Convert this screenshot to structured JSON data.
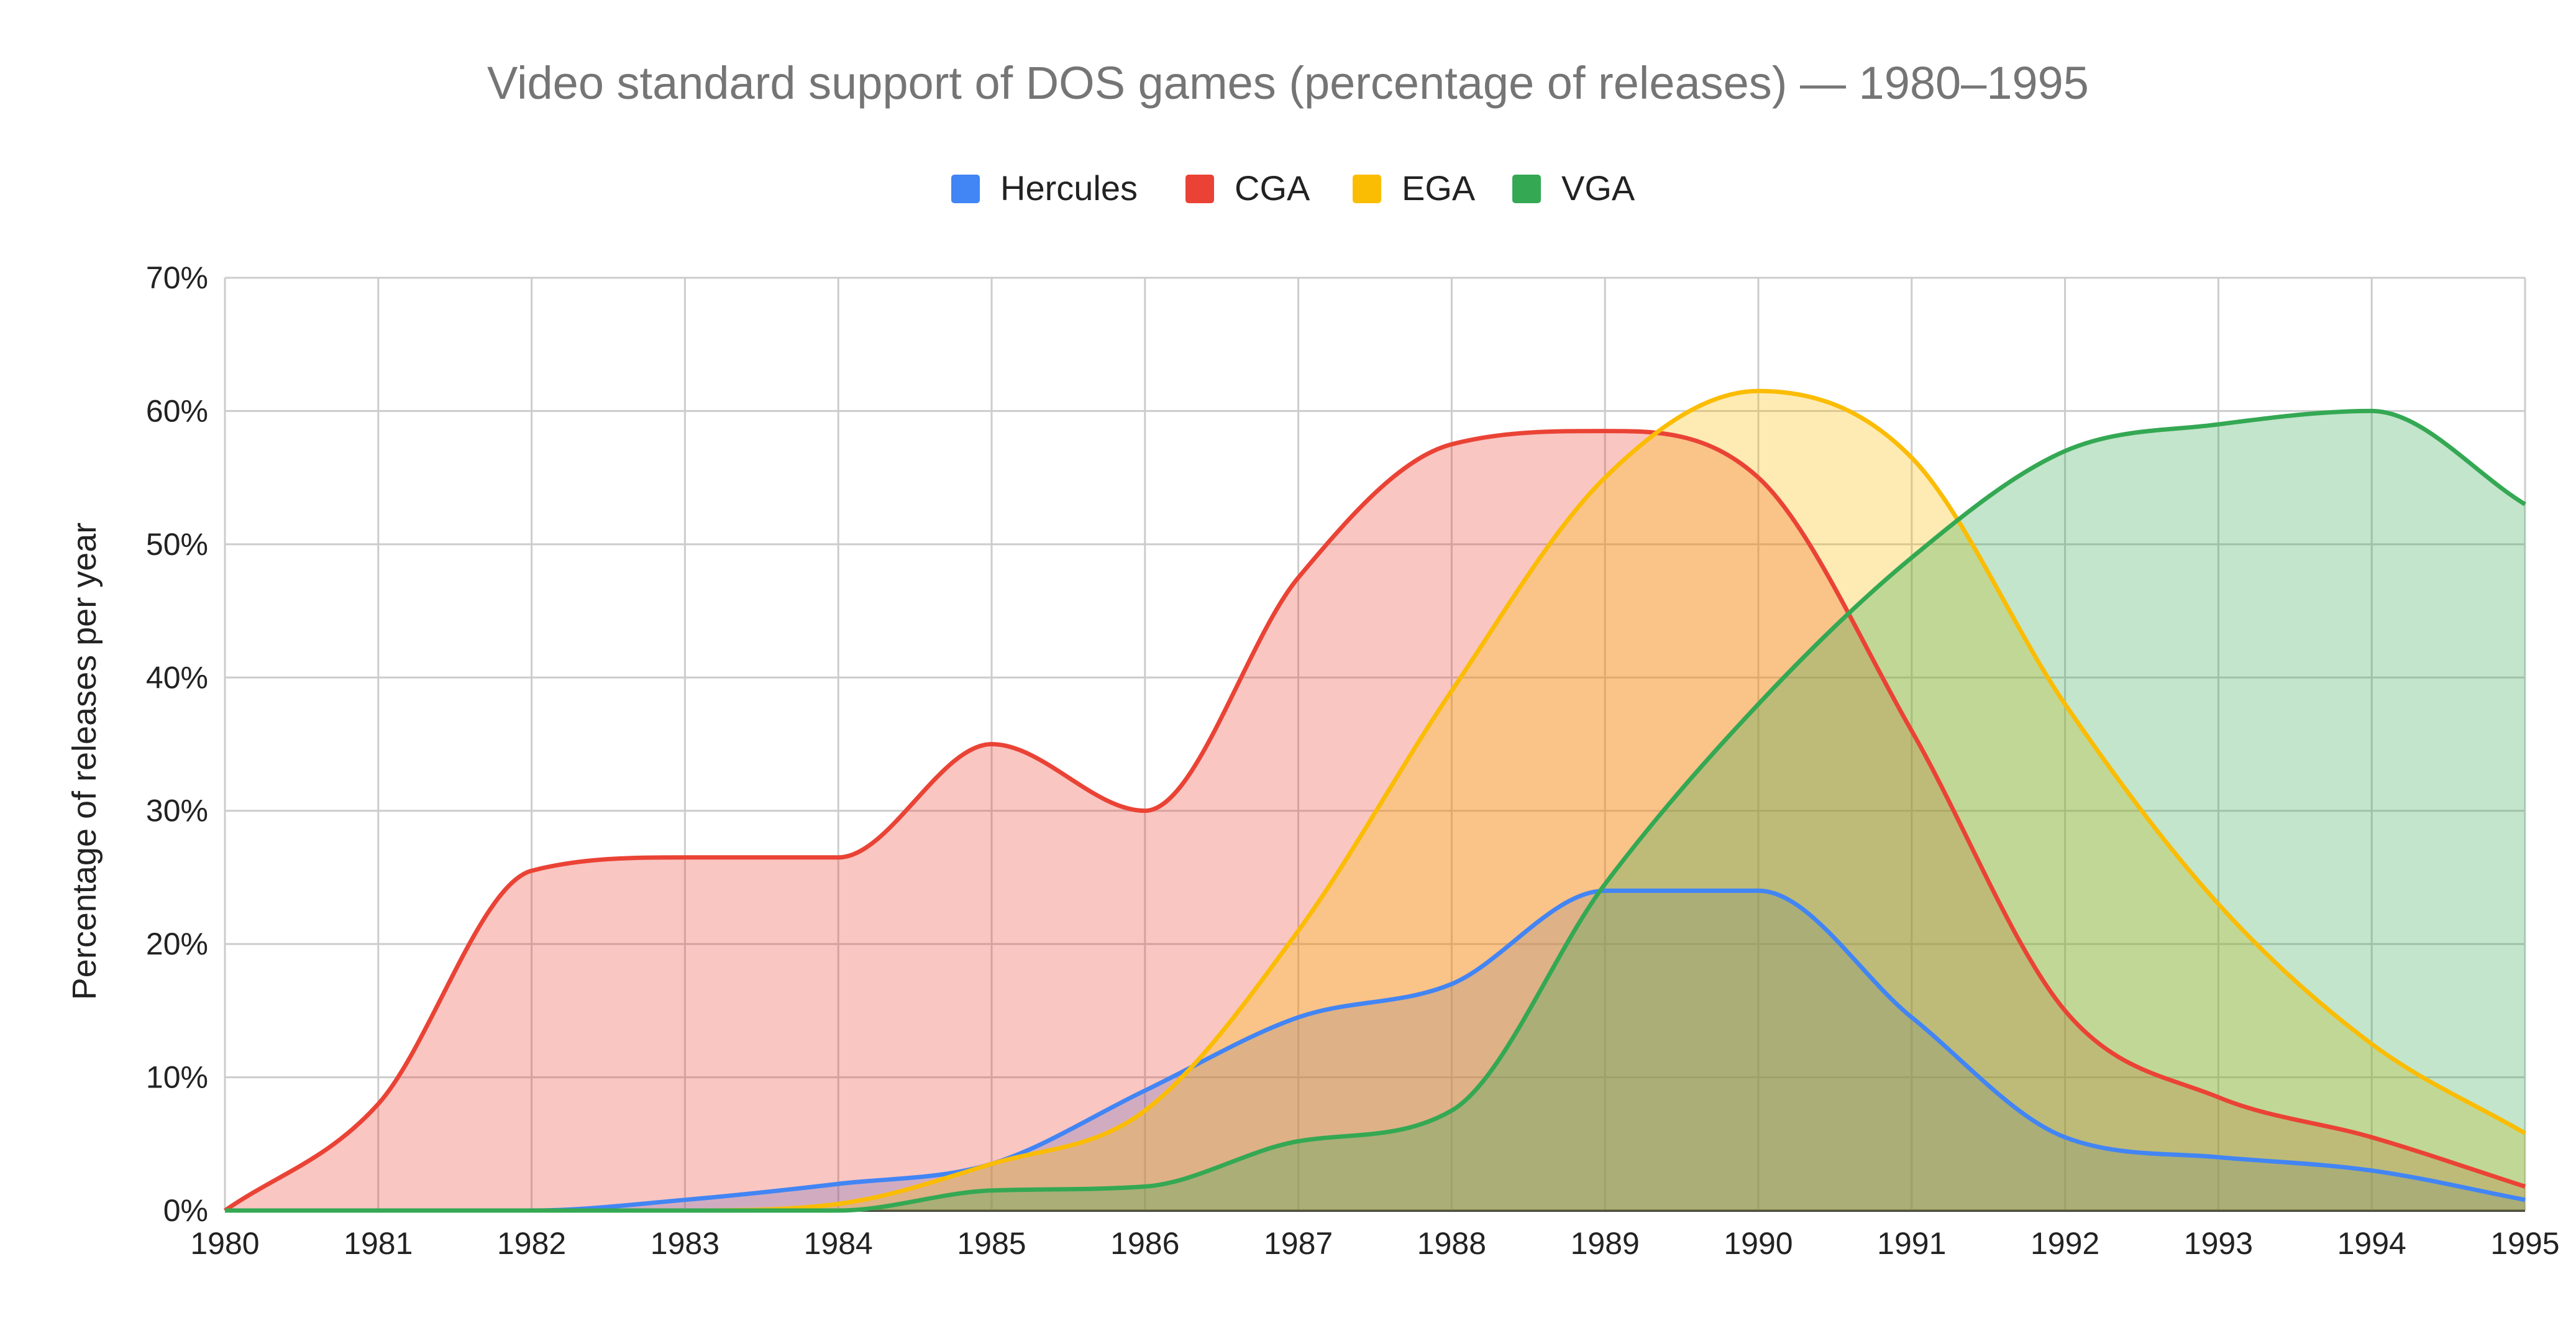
{
  "chart_data": {
    "type": "area",
    "title": "Video standard support of DOS games (percentage of releases) — 1980–1995",
    "xlabel": "",
    "ylabel": "Percentage of releases per year",
    "x": [
      1980,
      1981,
      1982,
      1983,
      1984,
      1985,
      1986,
      1987,
      1988,
      1989,
      1990,
      1991,
      1992,
      1993,
      1994,
      1995
    ],
    "x_tick_labels": [
      "1980",
      "1981",
      "1982",
      "1983",
      "1984",
      "1985",
      "1986",
      "1987",
      "1988",
      "1989",
      "1990",
      "1991",
      "1992",
      "1993",
      "1994",
      "1995"
    ],
    "ylim": [
      0,
      70
    ],
    "y_ticks": [
      0,
      10,
      20,
      30,
      40,
      50,
      60,
      70
    ],
    "y_tick_labels": [
      "0%",
      "10%",
      "20%",
      "30%",
      "40%",
      "50%",
      "60%",
      "70%"
    ],
    "grid": true,
    "legend_position": "top-center",
    "series": [
      {
        "name": "Hercules",
        "color": "#4285f4",
        "values": [
          0,
          0,
          0,
          0.8,
          2.0,
          3.5,
          9.0,
          14.5,
          17.0,
          24.0,
          24.0,
          14.5,
          5.5,
          4.0,
          3.0,
          0.8
        ]
      },
      {
        "name": "CGA",
        "color": "#ea4335",
        "values": [
          0,
          8.0,
          25.5,
          26.5,
          26.5,
          35.0,
          30.0,
          47.5,
          57.5,
          58.5,
          55.0,
          36.0,
          15.0,
          8.5,
          5.5,
          1.8
        ]
      },
      {
        "name": "EGA",
        "color": "#fbbc04",
        "values": [
          0,
          0,
          0,
          0,
          0.5,
          3.5,
          7.5,
          21.0,
          39.0,
          55.0,
          61.5,
          56.5,
          38.0,
          23.0,
          12.5,
          5.8
        ]
      },
      {
        "name": "VGA",
        "color": "#34a853",
        "values": [
          0,
          0,
          0,
          0,
          0,
          1.5,
          1.8,
          5.2,
          7.5,
          24.5,
          38.0,
          49.0,
          57.0,
          59.0,
          60.0,
          53.0
        ]
      }
    ]
  }
}
